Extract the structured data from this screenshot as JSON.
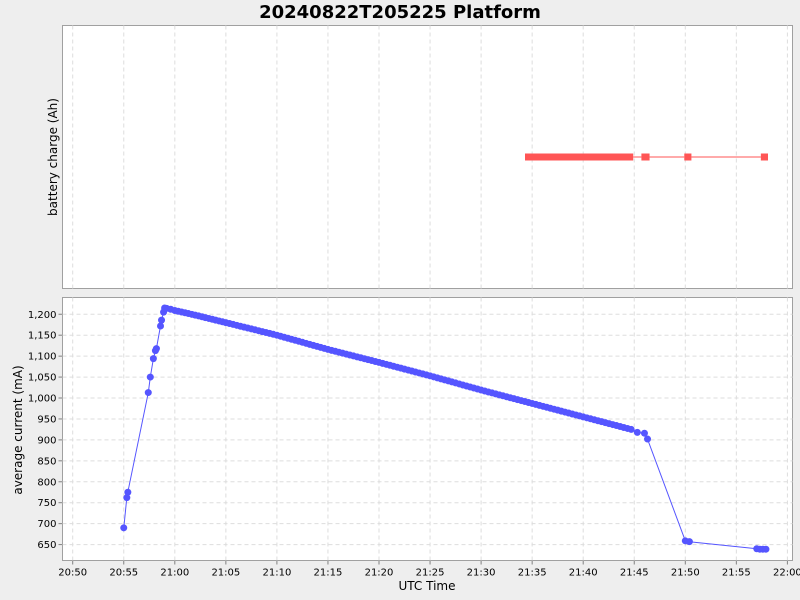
{
  "chart_data": {
    "title": "20240822T205225 Platform",
    "xlabel": "UTC Time",
    "x_ticks": [
      "20:50",
      "20:55",
      "21:00",
      "21:05",
      "21:10",
      "21:15",
      "21:20",
      "21:25",
      "21:30",
      "21:35",
      "21:40",
      "21:45",
      "21:50",
      "21:55",
      "22:00"
    ],
    "x_range": [
      "20:49",
      "22:00.5"
    ],
    "panels": [
      {
        "type": "line",
        "ylabel": "battery charge (Ah)",
        "series": [
          {
            "color": "#ff5555",
            "segments": [
              {
                "start": "21:34.3",
                "end": "21:44.9",
                "thick": true
              },
              {
                "start": "21:44.9",
                "end": "21:45.7",
                "thick": false
              },
              {
                "start": "21:45.7",
                "end": "21:46.5",
                "thick": true
              },
              {
                "start": "21:46.5",
                "end": "21:49.9",
                "thick": false
              },
              {
                "start": "21:49.9",
                "end": "21:50.6",
                "thick": true
              },
              {
                "start": "21:50.6",
                "end": "21:57.4",
                "thick": false
              },
              {
                "start": "21:57.4",
                "end": "21:58.1",
                "thick": true
              }
            ]
          }
        ]
      },
      {
        "type": "line",
        "ylabel": "average current (mA)",
        "ylim": [
          612,
          1240
        ],
        "y_ticks": [
          650,
          700,
          750,
          800,
          850,
          900,
          950,
          1000,
          1050,
          1100,
          1150,
          1200
        ],
        "y_tick_labels": [
          "650",
          "700",
          "750",
          "800",
          "850",
          "900",
          "950",
          "1,000",
          "1,050",
          "1,100",
          "1,150",
          "1,200"
        ],
        "series": [
          {
            "color": "#5555ff",
            "points": [
              [
                "20:55.0",
                690
              ],
              [
                "20:55.3",
                762
              ],
              [
                "20:55.4",
                775
              ],
              [
                "20:57.4",
                1013
              ],
              [
                "20:57.6",
                1050
              ],
              [
                "20:57.9",
                1094
              ],
              [
                "20:58.1",
                1113
              ],
              [
                "20:58.2",
                1118
              ],
              [
                "20:58.6",
                1172
              ],
              [
                "20:58.7",
                1186
              ],
              [
                "20:58.9",
                1205
              ],
              [
                "20:59.0",
                1215
              ],
              [
                "20:59.2",
                1214
              ],
              [
                "20:59.6",
                1212
              ],
              [
                "21:00.0",
                1209
              ],
              [
                "21:02.0",
                1198
              ],
              [
                "21:05.0",
                1180
              ],
              [
                "21:10.0",
                1150
              ],
              [
                "21:15.0",
                1116
              ],
              [
                "21:20.0",
                1085
              ],
              [
                "21:25.0",
                1053
              ],
              [
                "21:30.0",
                1019
              ],
              [
                "21:35.0",
                987
              ],
              [
                "21:40.0",
                955
              ],
              [
                "21:44.7",
                925
              ],
              [
                "21:45.3",
                918
              ],
              [
                "21:46.0",
                916
              ],
              [
                "21:46.3",
                902
              ],
              [
                "21:50.0",
                659
              ],
              [
                "21:50.4",
                657
              ],
              [
                "21:57.0",
                640
              ],
              [
                "21:57.3",
                639
              ],
              [
                "21:57.6",
                639
              ],
              [
                "21:57.9",
                639
              ]
            ]
          }
        ]
      }
    ]
  }
}
